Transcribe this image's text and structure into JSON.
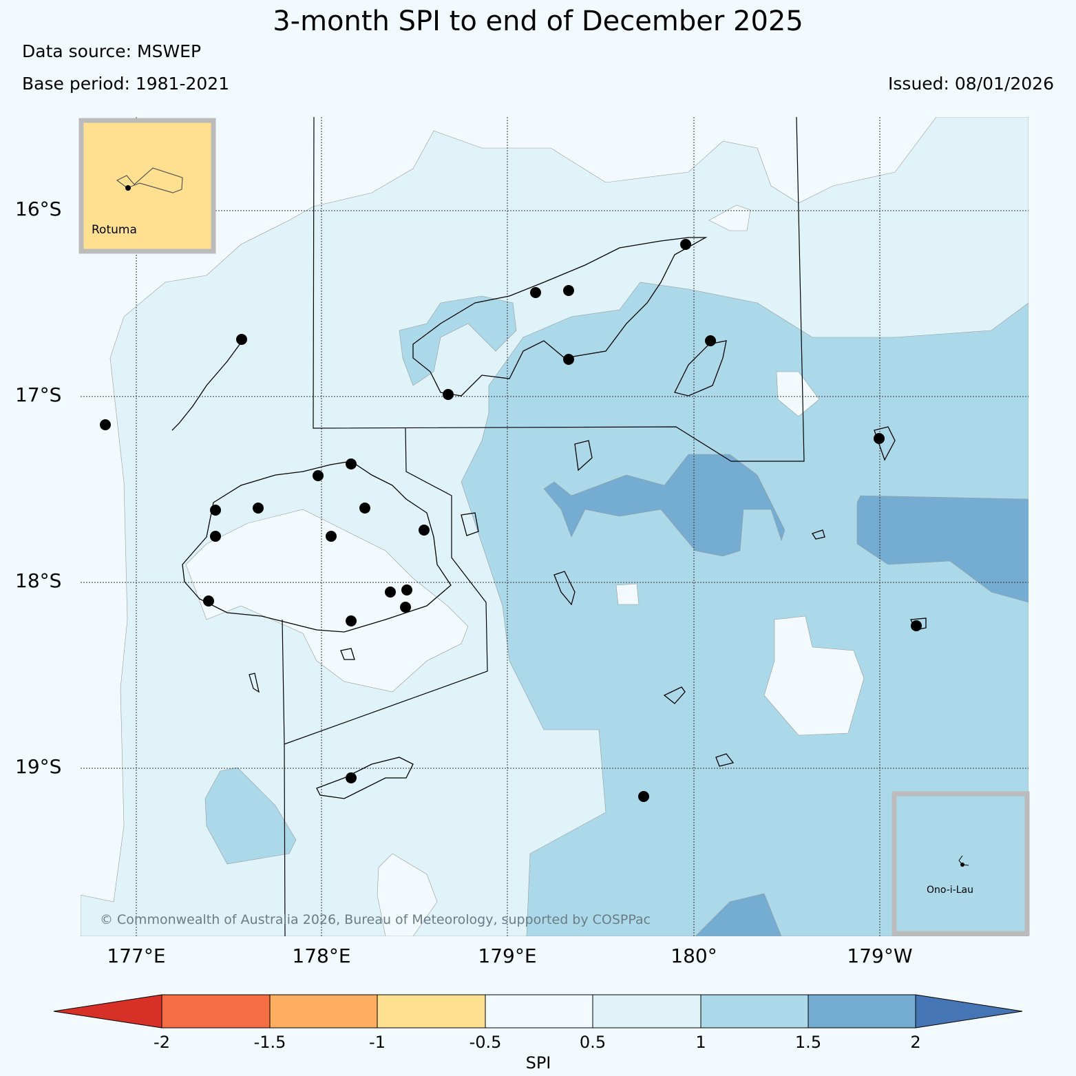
{
  "title": "3-month SPI to end of December 2025",
  "data_source": "Data source: MSWEP",
  "base_period": "Base period: 1981-2021",
  "issued": "Issued: 08/01/2026",
  "copyright": "© Commonwealth of Australia 2026, Bureau of Meteorology, supported by COSPPac",
  "latitude_labels": [
    "16°S",
    "17°S",
    "18°S",
    "19°S"
  ],
  "longitude_labels": [
    "177°E",
    "178°E",
    "179°E",
    "180°",
    "179°W"
  ],
  "insets": {
    "rotuma": "Rotuma",
    "ono_i_lau": "Ono-i-Lau"
  },
  "colorbar": {
    "label": "SPI",
    "ticks": [
      "-2",
      "-1.5",
      "-1",
      "-0.5",
      "0.5",
      "1",
      "1.5",
      "2"
    ],
    "colors": [
      "#d73027",
      "#f46d43",
      "#fdae61",
      "#fee090",
      "#f2fafd",
      "#e0f3f8",
      "#abd9e9",
      "#74add1",
      "#4575b4"
    ]
  }
}
